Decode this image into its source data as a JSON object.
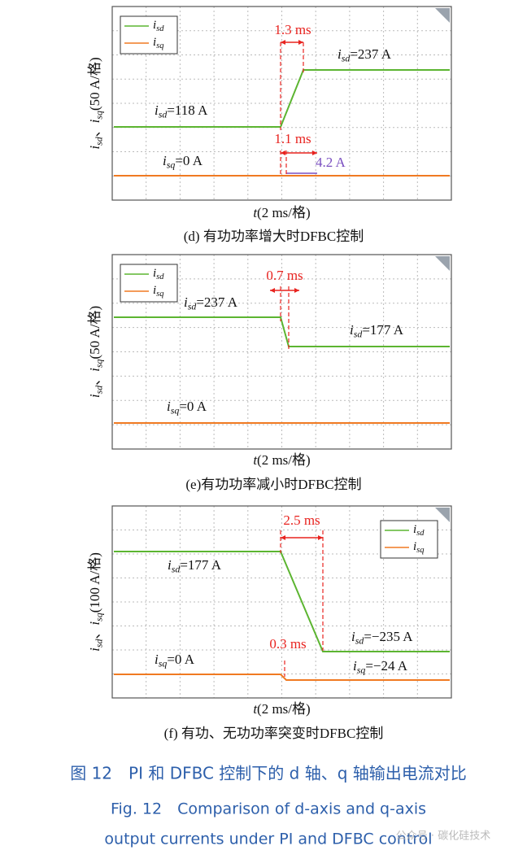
{
  "panels": [
    {
      "legend": [
        {
          "var": "i",
          "sub": "sd"
        },
        {
          "var": "i",
          "sub": "sq"
        }
      ],
      "y_label": [
        {
          "var": "i",
          "sub": "sd",
          "text": "、"
        },
        {
          "var": "i",
          "sub": "sq",
          "text": "(50 A/格)"
        }
      ],
      "x_label": {
        "var": "t",
        "text": "(2 ms/格)"
      },
      "caption": "(d) 有功功率增大时DFBC控制",
      "annotations": [
        {
          "text": "1.3 ms"
        },
        {
          "var": "i",
          "sub": "sd",
          "text": "=237 A"
        },
        {
          "var": "i",
          "sub": "sd",
          "text": "=118 A"
        },
        {
          "text": "1.1 ms"
        },
        {
          "var": "i",
          "sub": "sq",
          "text": "=0 A"
        },
        {
          "text": "4.2 A"
        }
      ]
    },
    {
      "legend": [
        {
          "var": "i",
          "sub": "sd"
        },
        {
          "var": "i",
          "sub": "sq"
        }
      ],
      "y_label": [
        {
          "var": "i",
          "sub": "sd",
          "text": "、"
        },
        {
          "var": "i",
          "sub": "sq",
          "text": "(50 A/格)"
        }
      ],
      "x_label": {
        "var": "t",
        "text": "(2 ms/格)"
      },
      "caption": "(e)有功功率减小时DFBC控制",
      "annotations": [
        {
          "text": "0.7 ms"
        },
        {
          "var": "i",
          "sub": "sd",
          "text": "=237 A"
        },
        {
          "var": "i",
          "sub": "sd",
          "text": "=177 A"
        },
        {
          "var": "i",
          "sub": "sq",
          "text": "=0 A"
        }
      ]
    },
    {
      "legend": [
        {
          "var": "i",
          "sub": "sd"
        },
        {
          "var": "i",
          "sub": "sq"
        }
      ],
      "y_label": [
        {
          "var": "i",
          "sub": "sd",
          "text": "、"
        },
        {
          "var": "i",
          "sub": "sq",
          "text": "(100 A/格)"
        }
      ],
      "x_label": {
        "var": "t",
        "text": "(2 ms/格)"
      },
      "caption": "(f) 有功、无功功率突变时DFBC控制",
      "annotations": [
        {
          "text": "2.5 ms"
        },
        {
          "var": "i",
          "sub": "sd",
          "text": "=177 A"
        },
        {
          "var": "i",
          "sub": "sd",
          "text": "=−235 A"
        },
        {
          "var": "i",
          "sub": "sq",
          "text": "=−24 A"
        },
        {
          "var": "i",
          "sub": "sq",
          "text": "=0 A"
        },
        {
          "text": "0.3 ms"
        }
      ]
    }
  ],
  "figure_caption_cn": "图 12　PI 和 DFBC 控制下的 d 轴、q 轴输出电流对比",
  "figure_caption_en": [
    "Fig. 12　Comparison of d-axis and q-axis",
    "output currents under PI and DFBC control"
  ],
  "watermark": "公众号 · 碳化硅技术"
}
